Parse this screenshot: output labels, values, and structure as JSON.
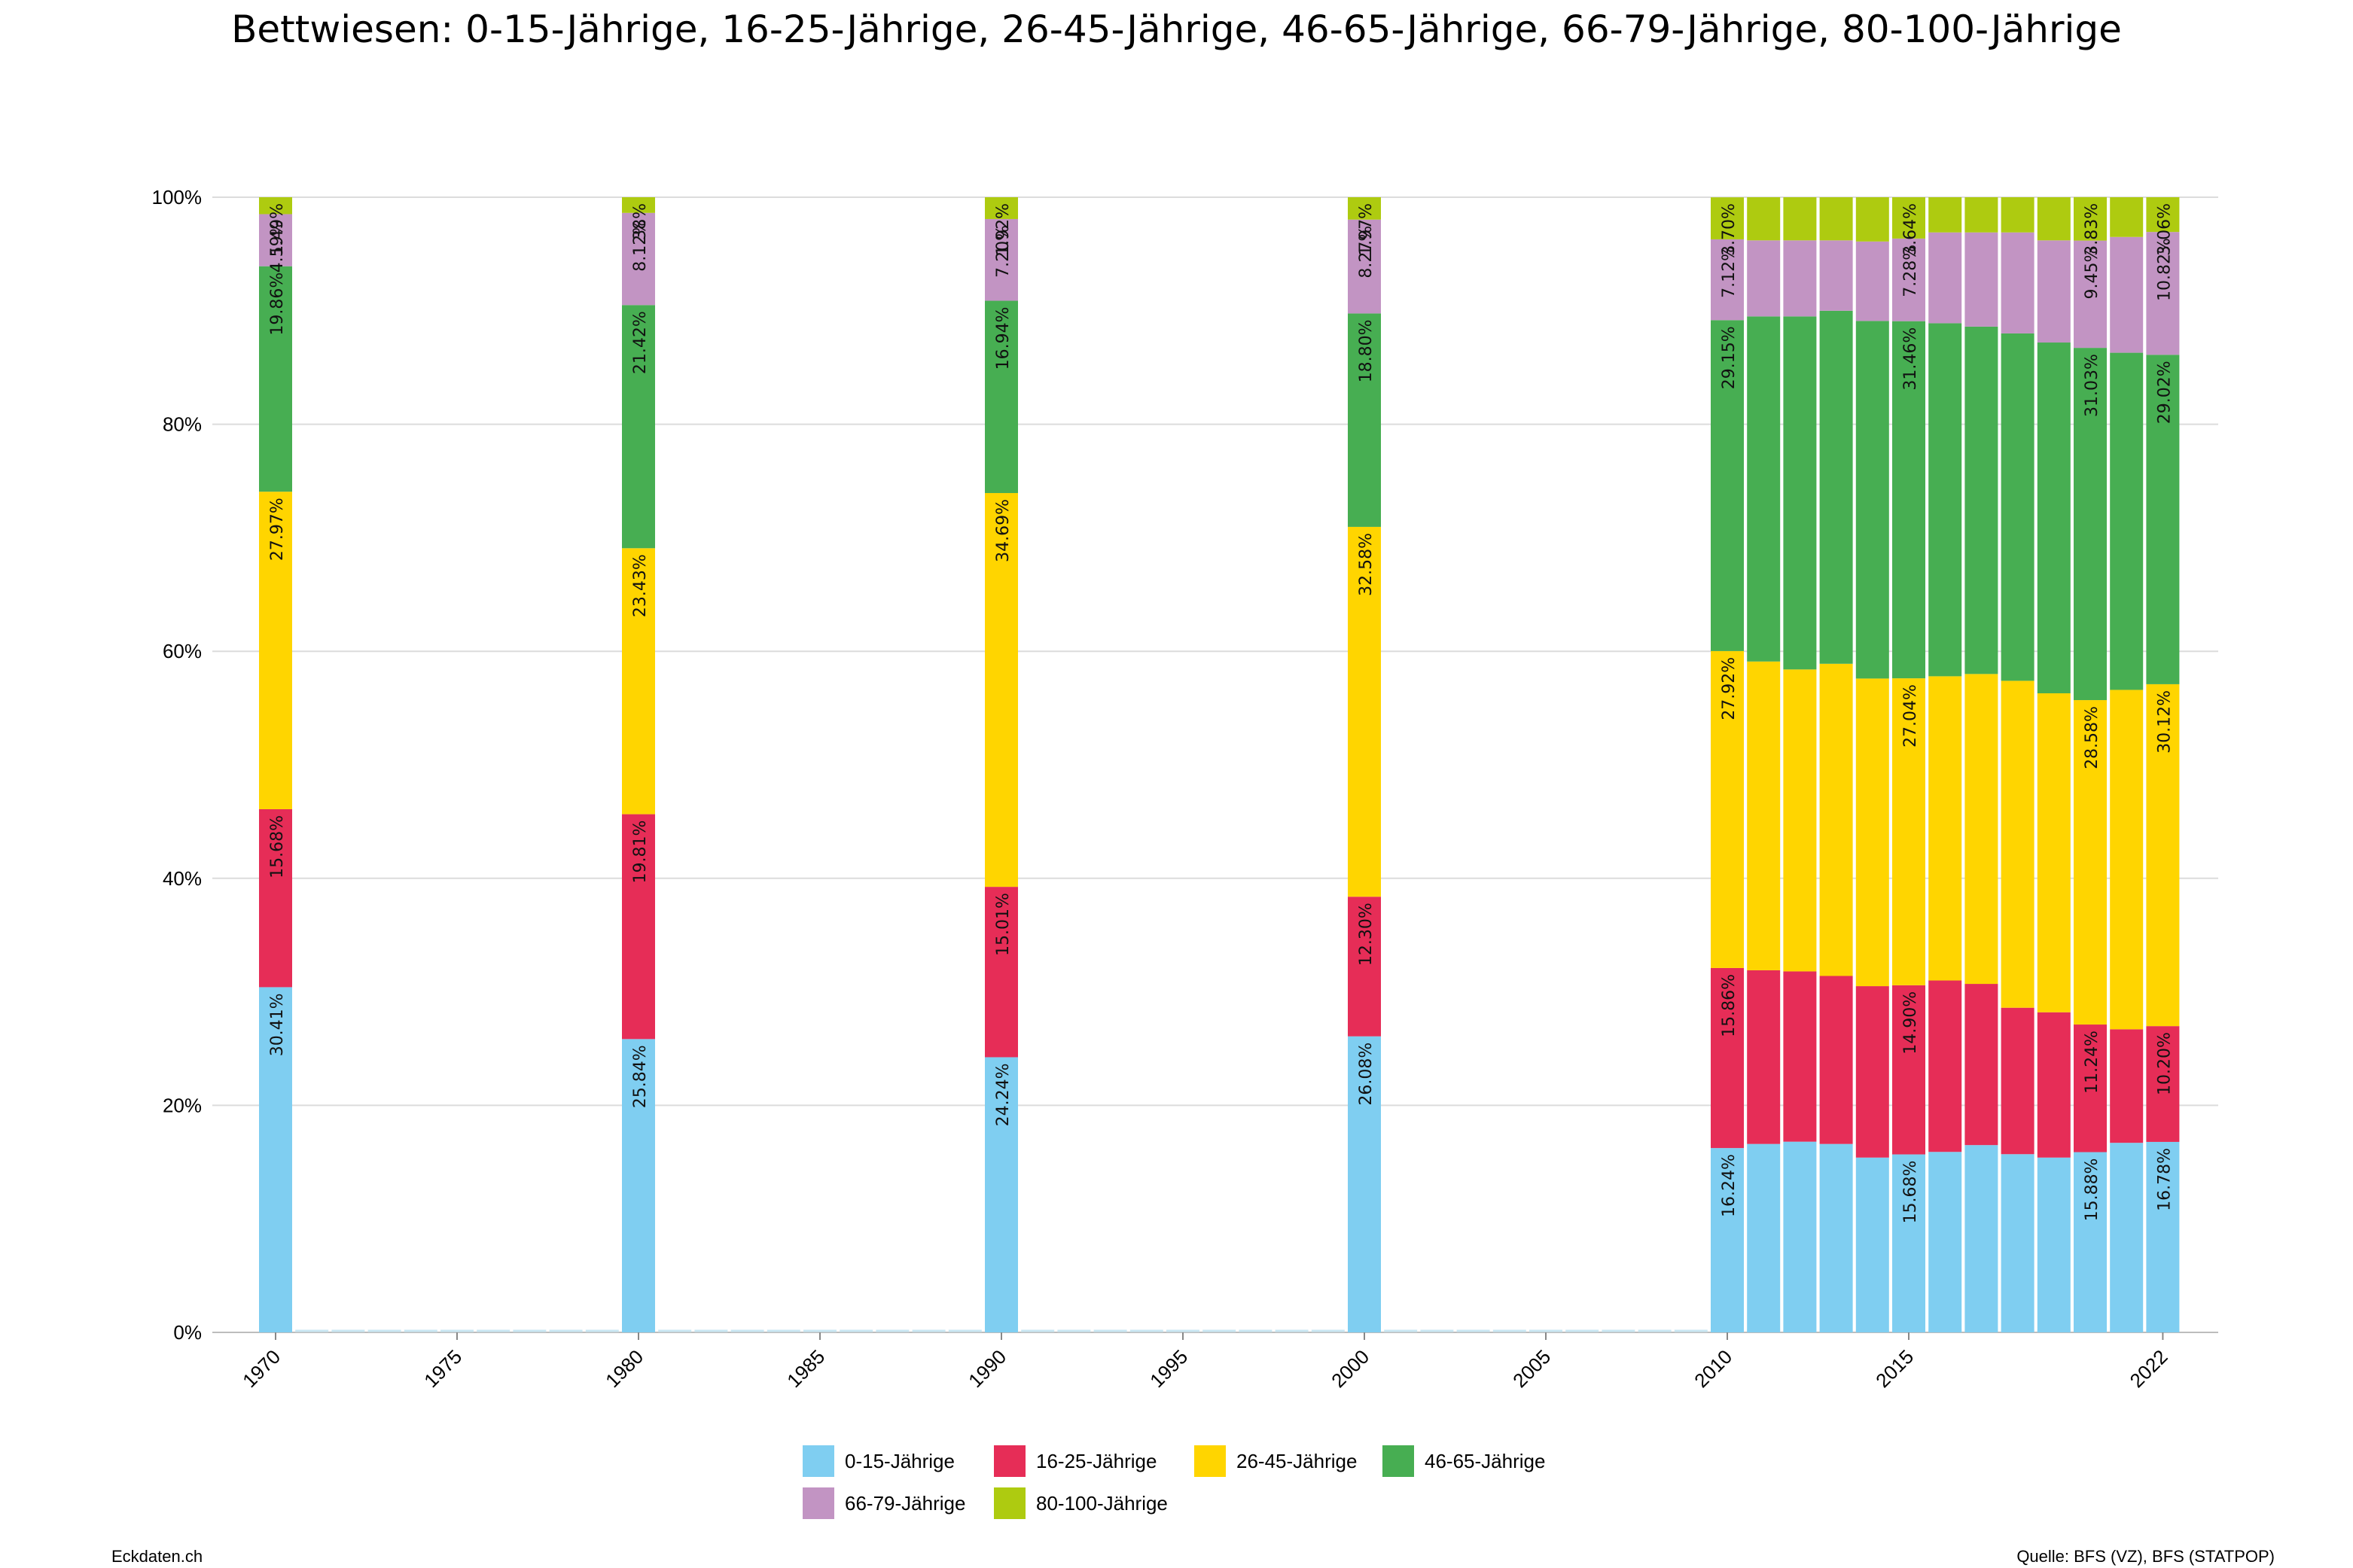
{
  "title": "Bettwiesen: 0-15-Jährige, 16-25-Jährige, 26-45-Jährige, 46-65-Jährige, 66-79-Jährige, 80-100-Jährige",
  "footer": {
    "left": "Eckdaten.ch",
    "right": "Quelle: BFS (VZ), BFS (STATPOP)"
  },
  "chart_data": {
    "type": "bar",
    "stacked": true,
    "percent_axis": true,
    "ylim": [
      0,
      100
    ],
    "y_ticks": [
      "0%",
      "20%",
      "40%",
      "60%",
      "80%",
      "100%"
    ],
    "x_ticks": [
      "1970",
      "1975",
      "1980",
      "1985",
      "1990",
      "1995",
      "2000",
      "2005",
      "2010",
      "2015",
      "2022"
    ],
    "xlim": [
      1970,
      2022
    ],
    "grid": true,
    "legend_position": "bottom",
    "series": [
      {
        "name": "0-15-Jährige",
        "color": "#7FCEF1"
      },
      {
        "name": "16-25-Jährige",
        "color": "#E62D57"
      },
      {
        "name": "26-45-Jährige",
        "color": "#FFD500"
      },
      {
        "name": "46-65-Jährige",
        "color": "#47AE52"
      },
      {
        "name": "66-79-Jährige",
        "color": "#C294C3"
      },
      {
        "name": "80-100-Jährige",
        "color": "#AECB10"
      }
    ],
    "bars": [
      {
        "year": 1970,
        "values": [
          30.41,
          15.68,
          27.97,
          19.86,
          4.59,
          1.49
        ],
        "labels": [
          "30.41%",
          "15.68%",
          "27.97%",
          "19.86%",
          "4.59%",
          "1.49%"
        ]
      },
      {
        "year": 1980,
        "values": [
          25.84,
          19.81,
          23.43,
          21.42,
          8.12,
          1.38
        ],
        "labels": [
          "25.84%",
          "19.81%",
          "23.43%",
          "21.42%",
          "8.12%",
          "1.38%"
        ]
      },
      {
        "year": 1990,
        "values": [
          24.24,
          15.01,
          34.69,
          16.94,
          7.2,
          1.92
        ],
        "labels": [
          "24.24%",
          "15.01%",
          "34.69%",
          "16.94%",
          "7.20%",
          "1.92%"
        ]
      },
      {
        "year": 2000,
        "values": [
          26.08,
          12.3,
          32.58,
          18.8,
          8.27,
          1.97
        ],
        "labels": [
          "26.08%",
          "12.30%",
          "32.58%",
          "18.80%",
          "8.27%",
          "1.97%"
        ]
      },
      {
        "year": 2010,
        "values": [
          16.24,
          15.86,
          27.92,
          29.15,
          7.12,
          3.7
        ],
        "labels": [
          "16.24%",
          "15.86%",
          "27.92%",
          "29.15%",
          "7.12%",
          "3.70%"
        ]
      },
      {
        "year": 2011,
        "values": [
          16.6,
          15.3,
          27.2,
          30.4,
          6.7,
          3.8
        ]
      },
      {
        "year": 2012,
        "values": [
          16.8,
          15.0,
          26.6,
          31.1,
          6.7,
          3.8
        ]
      },
      {
        "year": 2013,
        "values": [
          16.6,
          14.8,
          27.5,
          31.1,
          6.2,
          3.8
        ]
      },
      {
        "year": 2014,
        "values": [
          15.4,
          15.1,
          27.1,
          31.5,
          7.0,
          3.9
        ]
      },
      {
        "year": 2015,
        "values": [
          15.68,
          14.9,
          27.04,
          31.46,
          7.28,
          3.64
        ],
        "labels": [
          "15.68%",
          "14.90%",
          "27.04%",
          "31.46%",
          "7.28%",
          "3.64%"
        ]
      },
      {
        "year": 2016,
        "values": [
          15.9,
          15.1,
          26.8,
          31.1,
          8.0,
          3.1
        ]
      },
      {
        "year": 2017,
        "values": [
          16.5,
          14.2,
          27.3,
          30.6,
          8.3,
          3.1
        ]
      },
      {
        "year": 2018,
        "values": [
          15.7,
          12.9,
          28.8,
          30.6,
          8.9,
          3.1
        ]
      },
      {
        "year": 2019,
        "values": [
          15.4,
          12.8,
          28.1,
          30.9,
          9.0,
          3.8
        ]
      },
      {
        "year": 2020,
        "values": [
          15.88,
          11.24,
          28.58,
          31.03,
          9.45,
          3.83
        ],
        "labels": [
          "15.88%",
          "11.24%",
          "28.58%",
          "31.03%",
          "9.45%",
          "3.83%"
        ]
      },
      {
        "year": 2021,
        "values": [
          16.7,
          10.0,
          29.9,
          29.7,
          10.2,
          3.5
        ]
      },
      {
        "year": 2022,
        "values": [
          16.78,
          10.2,
          30.12,
          29.02,
          10.82,
          3.06
        ],
        "labels": [
          "16.78%",
          "10.20%",
          "30.12%",
          "29.02%",
          "10.82%",
          "3.06%"
        ]
      }
    ]
  }
}
